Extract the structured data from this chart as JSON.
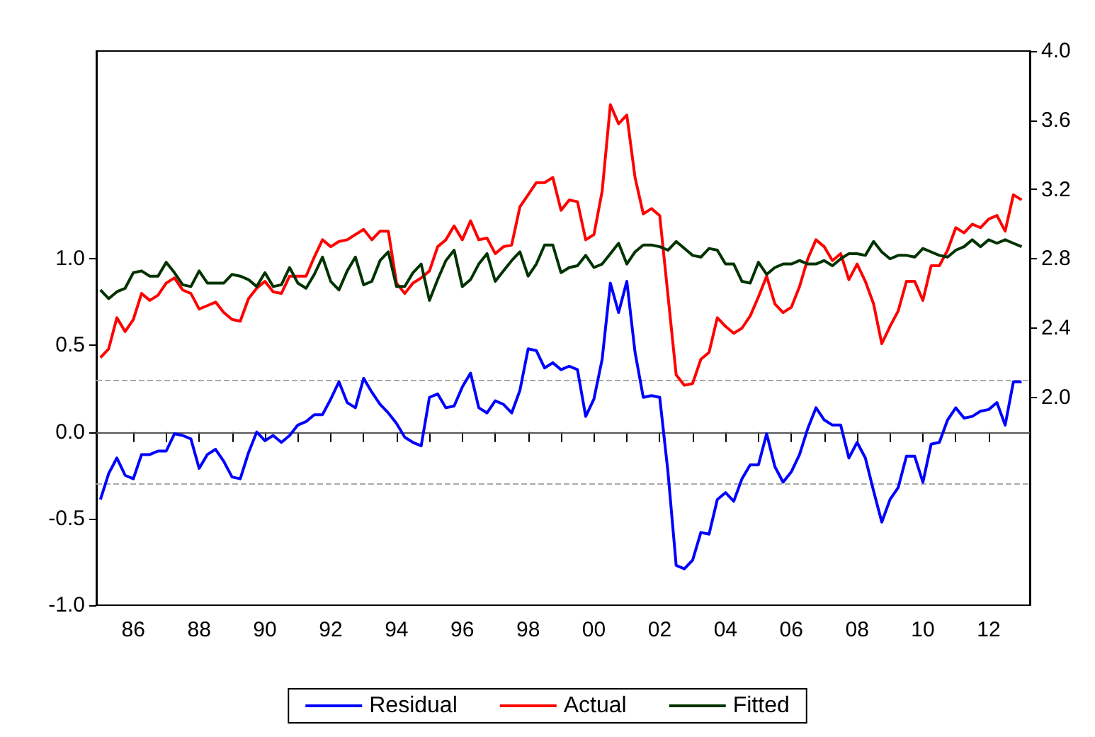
{
  "chart_data": {
    "type": "line",
    "legend": "bottom",
    "marker": "none",
    "line_style": "solid",
    "grid": false,
    "x": [
      1985,
      1985.25,
      1985.5,
      1985.75,
      1986,
      1986.25,
      1986.5,
      1986.75,
      1987,
      1987.25,
      1987.5,
      1987.75,
      1988,
      1988.25,
      1988.5,
      1988.75,
      1989,
      1989.25,
      1989.5,
      1989.75,
      1990,
      1990.25,
      1990.5,
      1990.75,
      1991,
      1991.25,
      1991.5,
      1991.75,
      1992,
      1992.25,
      1992.5,
      1992.75,
      1993,
      1993.25,
      1993.5,
      1993.75,
      1994,
      1994.25,
      1994.5,
      1994.75,
      1995,
      1995.25,
      1995.5,
      1995.75,
      1996,
      1996.25,
      1996.5,
      1996.75,
      1997,
      1997.25,
      1997.5,
      1997.75,
      1998,
      1998.25,
      1998.5,
      1998.75,
      1999,
      1999.25,
      1999.5,
      1999.75,
      2000,
      2000.25,
      2000.5,
      2000.75,
      2001,
      2001.25,
      2001.5,
      2001.75,
      2002,
      2002.25,
      2002.5,
      2002.75,
      2003,
      2003.25,
      2003.5,
      2003.75,
      2004,
      2004.25,
      2004.5,
      2004.75,
      2005,
      2005.25,
      2005.5,
      2005.75,
      2006,
      2006.25,
      2006.5,
      2006.75,
      2007,
      2007.25,
      2007.5,
      2007.75,
      2008,
      2008.25,
      2008.5,
      2008.75,
      2009,
      2009.25,
      2009.5,
      2009.75,
      2010,
      2010.25,
      2010.5,
      2010.75,
      2011,
      2011.25,
      2011.5,
      2011.75,
      2012,
      2012.25,
      2012.5,
      2012.75,
      2013
    ],
    "xlim": [
      1984.875,
      2013.25
    ],
    "xticks": [
      {
        "value": 1986,
        "label": "86"
      },
      {
        "value": 1987,
        "label": null
      },
      {
        "value": 1988,
        "label": "88"
      },
      {
        "value": 1989,
        "label": null
      },
      {
        "value": 1990,
        "label": "90"
      },
      {
        "value": 1991,
        "label": null
      },
      {
        "value": 1992,
        "label": "92"
      },
      {
        "value": 1993,
        "label": null
      },
      {
        "value": 1994,
        "label": "94"
      },
      {
        "value": 1995,
        "label": null
      },
      {
        "value": 1996,
        "label": "96"
      },
      {
        "value": 1997,
        "label": null
      },
      {
        "value": 1998,
        "label": "98"
      },
      {
        "value": 1999,
        "label": null
      },
      {
        "value": 2000,
        "label": "00"
      },
      {
        "value": 2001,
        "label": null
      },
      {
        "value": 2002,
        "label": "02"
      },
      {
        "value": 2003,
        "label": null
      },
      {
        "value": 2004,
        "label": "04"
      },
      {
        "value": 2005,
        "label": null
      },
      {
        "value": 2006,
        "label": "06"
      },
      {
        "value": 2007,
        "label": null
      },
      {
        "value": 2008,
        "label": "08"
      },
      {
        "value": 2009,
        "label": null
      },
      {
        "value": 2010,
        "label": "10"
      },
      {
        "value": 2011,
        "label": null
      },
      {
        "value": 2012,
        "label": "12"
      }
    ],
    "ylim": [
      -1.0,
      2.2
    ],
    "yticks": [
      {
        "value": -1,
        "label": "-1.0"
      },
      {
        "value": -0.5,
        "label": "-0.5"
      },
      {
        "value": 0,
        "label": "0.0"
      },
      {
        "value": 0.5,
        "label": "0.5"
      },
      {
        "value": 1,
        "label": "1.0"
      }
    ],
    "y2lim": [
      0.8,
      4.0
    ],
    "y2ticks": [
      {
        "value": 2,
        "label": "2.0"
      },
      {
        "value": 2.4,
        "label": "2.4"
      },
      {
        "value": 2.8,
        "label": "2.8"
      },
      {
        "value": 3.2,
        "label": "3.2"
      },
      {
        "value": 3.6,
        "label": "3.6"
      },
      {
        "value": 4,
        "label": "4.0"
      }
    ],
    "ref_lines": [
      {
        "axis": "y",
        "value": 0,
        "label": null,
        "color": "#555555",
        "line_style": "solid"
      },
      {
        "axis": "y",
        "value": 0.3,
        "label": null,
        "color": "#aaaaaa",
        "line_style": "dashed"
      },
      {
        "axis": "y",
        "value": -0.3,
        "label": null,
        "color": "#aaaaaa",
        "line_style": "dashed"
      }
    ],
    "series": [
      {
        "name": "Residual",
        "color": "#0000ff",
        "values": [
          -0.39,
          -0.24,
          -0.15,
          -0.25,
          -0.27,
          -0.13,
          -0.13,
          -0.11,
          -0.11,
          -0.01,
          -0.02,
          -0.04,
          -0.21,
          -0.13,
          -0.1,
          -0.17,
          -0.26,
          -0.27,
          -0.12,
          0.0,
          -0.05,
          -0.02,
          -0.06,
          -0.02,
          0.04,
          0.06,
          0.1,
          0.1,
          0.19,
          0.29,
          0.17,
          0.14,
          0.31,
          0.23,
          0.16,
          0.11,
          0.05,
          -0.03,
          -0.06,
          -0.08,
          0.2,
          0.22,
          0.14,
          0.15,
          0.26,
          0.34,
          0.14,
          0.11,
          0.18,
          0.16,
          0.11,
          0.24,
          0.48,
          0.47,
          0.37,
          0.4,
          0.36,
          0.38,
          0.36,
          0.09,
          0.19,
          0.42,
          0.86,
          0.69,
          0.87,
          0.46,
          0.2,
          0.21,
          0.2,
          -0.23,
          -0.77,
          -0.79,
          -0.74,
          -0.58,
          -0.59,
          -0.39,
          -0.35,
          -0.4,
          -0.27,
          -0.19,
          -0.19,
          -0.01,
          -0.2,
          -0.29,
          -0.23,
          -0.13,
          0.02,
          0.14,
          0.07,
          0.04,
          0.04,
          -0.15,
          -0.06,
          -0.15,
          -0.34,
          -0.52,
          -0.39,
          -0.32,
          -0.14,
          -0.14,
          -0.29,
          -0.07,
          -0.06,
          0.07,
          0.14,
          0.08,
          0.09,
          0.12,
          0.13,
          0.17,
          0.04,
          0.29,
          0.29
        ]
      },
      {
        "name": "Actual",
        "color": "#ff0000",
        "axis": "y2",
        "values": [
          2.23,
          2.28,
          2.46,
          2.38,
          2.45,
          2.6,
          2.56,
          2.59,
          2.66,
          2.69,
          2.62,
          2.6,
          2.51,
          2.53,
          2.55,
          2.49,
          2.45,
          2.44,
          2.57,
          2.63,
          2.67,
          2.61,
          2.6,
          2.7,
          2.7,
          2.7,
          2.81,
          2.91,
          2.87,
          2.9,
          2.91,
          2.94,
          2.97,
          2.91,
          2.96,
          2.96,
          2.66,
          2.6,
          2.66,
          2.69,
          2.73,
          2.87,
          2.91,
          2.99,
          2.91,
          3.02,
          2.91,
          2.92,
          2.83,
          2.87,
          2.88,
          3.1,
          3.17,
          3.24,
          3.24,
          3.27,
          3.08,
          3.14,
          3.13,
          2.91,
          2.94,
          3.19,
          3.69,
          3.58,
          3.63,
          3.27,
          3.06,
          3.09,
          3.05,
          2.59,
          2.13,
          2.07,
          2.08,
          2.22,
          2.26,
          2.46,
          2.41,
          2.37,
          2.4,
          2.47,
          2.58,
          2.7,
          2.54,
          2.49,
          2.52,
          2.64,
          2.8,
          2.91,
          2.87,
          2.79,
          2.83,
          2.68,
          2.77,
          2.67,
          2.54,
          2.31,
          2.41,
          2.5,
          2.67,
          2.67,
          2.56,
          2.76,
          2.76,
          2.85,
          2.98,
          2.95,
          3.0,
          2.98,
          3.03,
          3.05,
          2.96,
          3.17,
          3.14
        ]
      },
      {
        "name": "Fitted",
        "color": "#003300",
        "axis": "y2",
        "values": [
          2.62,
          2.57,
          2.61,
          2.63,
          2.72,
          2.73,
          2.7,
          2.7,
          2.78,
          2.72,
          2.65,
          2.64,
          2.73,
          2.66,
          2.66,
          2.66,
          2.71,
          2.7,
          2.68,
          2.64,
          2.72,
          2.64,
          2.65,
          2.75,
          2.66,
          2.63,
          2.71,
          2.81,
          2.67,
          2.62,
          2.73,
          2.81,
          2.65,
          2.67,
          2.79,
          2.84,
          2.64,
          2.64,
          2.72,
          2.77,
          2.56,
          2.68,
          2.79,
          2.85,
          2.64,
          2.68,
          2.77,
          2.83,
          2.67,
          2.73,
          2.79,
          2.84,
          2.7,
          2.77,
          2.88,
          2.88,
          2.72,
          2.75,
          2.76,
          2.82,
          2.75,
          2.77,
          2.83,
          2.89,
          2.77,
          2.84,
          2.88,
          2.88,
          2.87,
          2.85,
          2.9,
          2.86,
          2.82,
          2.81,
          2.86,
          2.85,
          2.77,
          2.77,
          2.67,
          2.66,
          2.78,
          2.71,
          2.75,
          2.77,
          2.77,
          2.79,
          2.77,
          2.77,
          2.79,
          2.76,
          2.8,
          2.83,
          2.83,
          2.82,
          2.9,
          2.84,
          2.8,
          2.82,
          2.82,
          2.81,
          2.86,
          2.84,
          2.82,
          2.81,
          2.85,
          2.87,
          2.91,
          2.87,
          2.91,
          2.89,
          2.91,
          2.89,
          2.87
        ]
      }
    ]
  }
}
